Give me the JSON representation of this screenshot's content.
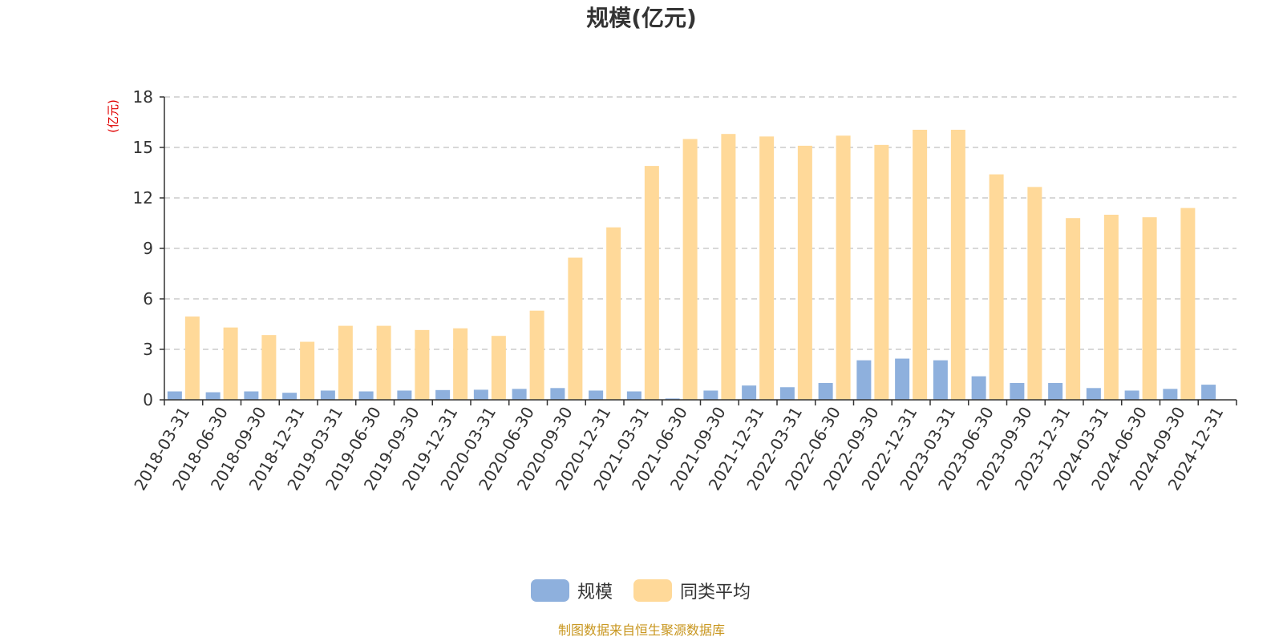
{
  "chart_data": {
    "type": "bar",
    "title": "规模(亿元)",
    "ylabel": "(亿元)",
    "xlabel": "",
    "ylim": [
      0,
      18
    ],
    "yticks": [
      0,
      3,
      6,
      9,
      12,
      15,
      18
    ],
    "grid": true,
    "legend_position": "bottom-center",
    "categories": [
      "2018-03-31",
      "2018-06-30",
      "2018-09-30",
      "2018-12-31",
      "2019-03-31",
      "2019-06-30",
      "2019-09-30",
      "2019-12-31",
      "2020-03-31",
      "2020-06-30",
      "2020-09-30",
      "2020-12-31",
      "2021-03-31",
      "2021-06-30",
      "2021-09-30",
      "2021-12-31",
      "2022-03-31",
      "2022-06-30",
      "2022-09-30",
      "2022-12-31",
      "2023-03-31",
      "2023-06-30",
      "2023-09-30",
      "2023-12-31",
      "2024-03-31",
      "2024-06-30",
      "2024-09-30",
      "2024-12-31"
    ],
    "series": [
      {
        "name": "规模",
        "color": "#8eb0dd",
        "values": [
          0.5,
          0.45,
          0.5,
          0.42,
          0.55,
          0.5,
          0.55,
          0.58,
          0.6,
          0.65,
          0.7,
          0.55,
          0.5,
          0.08,
          0.55,
          0.85,
          0.75,
          1.0,
          2.35,
          2.45,
          2.35,
          1.4,
          1.0,
          1.0,
          0.7,
          0.55,
          0.65,
          0.9
        ]
      },
      {
        "name": "同类平均",
        "color": "#ffd999",
        "values": [
          4.95,
          4.3,
          3.85,
          3.45,
          4.4,
          4.4,
          4.15,
          4.25,
          3.8,
          5.3,
          8.45,
          10.25,
          13.9,
          15.5,
          15.8,
          15.65,
          15.1,
          15.7,
          15.15,
          16.05,
          16.05,
          13.4,
          12.65,
          10.8,
          11.0,
          10.85,
          11.4,
          null
        ]
      }
    ],
    "source": "制图数据来自恒生聚源数据库"
  }
}
